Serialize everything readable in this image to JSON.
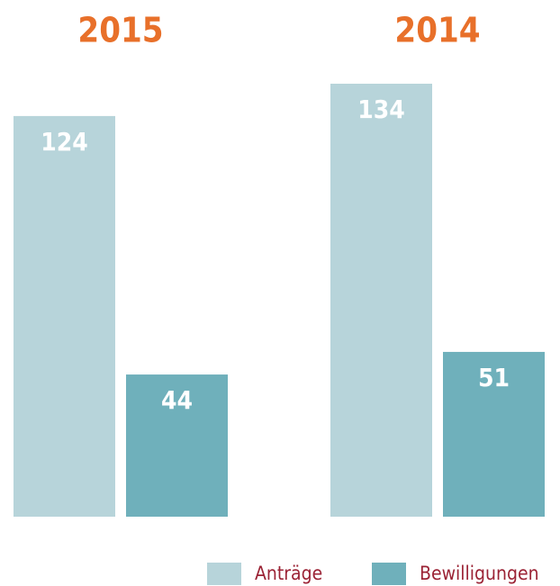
{
  "chart_data": {
    "type": "bar",
    "categories": [
      "2015",
      "2014"
    ],
    "series": [
      {
        "name": "Anträge",
        "color": "#b7d4da",
        "values": [
          124,
          134
        ]
      },
      {
        "name": "Bewilligungen",
        "color": "#6fb0bb",
        "values": [
          44,
          51
        ]
      }
    ],
    "title_color": "#e8702a",
    "legend_color": "#9b2335",
    "value_label_color": "#ffffff",
    "legend": "bottom-right"
  }
}
